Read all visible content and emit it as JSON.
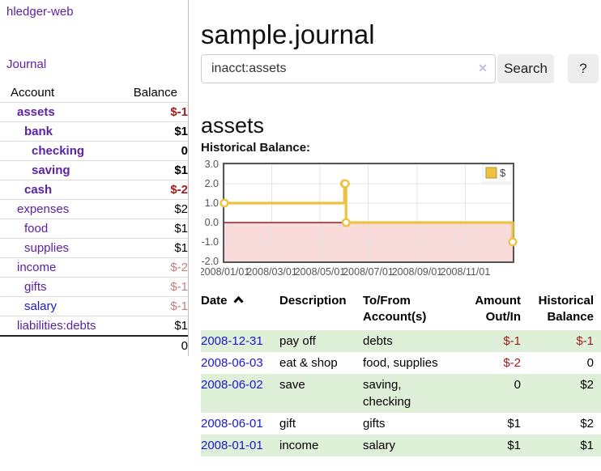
{
  "app": {
    "title": "hledger-web"
  },
  "sidebar": {
    "journal_label": "Journal",
    "columns": [
      "Account",
      "Balance"
    ],
    "accounts": [
      {
        "name": "assets",
        "balance": "$-1"
      },
      {
        "name": "bank",
        "balance": "$1"
      },
      {
        "name": "checking",
        "balance": "0"
      },
      {
        "name": "saving",
        "balance": "$1"
      },
      {
        "name": "cash",
        "balance": "$-2"
      },
      {
        "name": "expenses",
        "balance": "$2"
      },
      {
        "name": "food",
        "balance": "$1"
      },
      {
        "name": "supplies",
        "balance": "$1"
      },
      {
        "name": "income",
        "balance": "$-2"
      },
      {
        "name": "gifts",
        "balance": "$-1"
      },
      {
        "name": "salary",
        "balance": "$-1"
      },
      {
        "name": "liabilities:debts",
        "balance": "$1"
      }
    ],
    "total": "0"
  },
  "header": {
    "title": "sample.journal"
  },
  "search": {
    "query": "inacct:assets",
    "clear_icon": "✕",
    "button_label": "Search",
    "help_label": "?"
  },
  "account_page": {
    "heading": "assets",
    "chart_label": "Historical Balance:"
  },
  "chart_data": {
    "type": "line",
    "title": "Historical Balance:",
    "step": true,
    "series": [
      {
        "name": "$",
        "color": "#edc240",
        "points": [
          [
            "2008-01-01",
            1
          ],
          [
            "2008-06-01",
            2
          ],
          [
            "2008-06-02",
            2
          ],
          [
            "2008-06-03",
            0
          ],
          [
            "2008-12-31",
            -1
          ]
        ]
      }
    ],
    "xlim": [
      "2008-01-01",
      "2008-12-31"
    ],
    "ylim": [
      -2,
      3
    ],
    "y_ticks": [
      3.0,
      2.0,
      1.0,
      0.0,
      -1.0,
      -2.0
    ],
    "x_ticks": [
      "2008/01/01",
      "2008/03/01",
      "2008/05/01",
      "2008/07/01",
      "2008/09/01",
      "2008/11/01"
    ],
    "grid": true,
    "legend_position": "top-right",
    "negative_fill": "#f9dbdb",
    "zero_line_color": "#8e1f1f",
    "border_color": "#545454",
    "grid_color": "#e3e3e3",
    "tick_color": "#545454"
  },
  "register": {
    "columns": [
      "Date",
      "Description",
      "To/From Account(s)",
      "Amount Out/In",
      "Historical Balance"
    ],
    "rows": [
      {
        "date": "2008-12-31",
        "description": "pay off",
        "accounts": "debts",
        "amount": "$-1",
        "balance": "$-1"
      },
      {
        "date": "2008-06-03",
        "description": "eat & shop",
        "accounts": "food, supplies",
        "amount": "$-2",
        "balance": "0"
      },
      {
        "date": "2008-06-02",
        "description": "save",
        "accounts": "saving, checking",
        "amount": "0",
        "balance": "$2"
      },
      {
        "date": "2008-06-01",
        "description": "gift",
        "accounts": "gifts",
        "amount": "$1",
        "balance": "$2"
      },
      {
        "date": "2008-01-01",
        "description": "income",
        "accounts": "salary",
        "amount": "$1",
        "balance": "$1"
      }
    ]
  }
}
